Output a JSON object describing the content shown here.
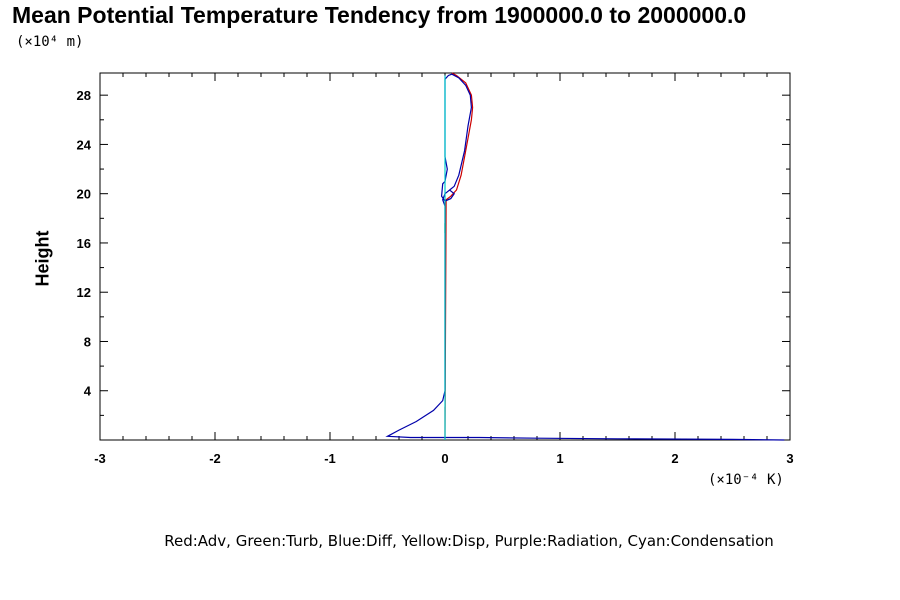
{
  "chart_data": {
    "type": "line",
    "title": "Mean Potential Temperature Tendency from 1900000.0 to 2000000.0",
    "ylabel": "Height",
    "xunits_label": "(×10⁻⁴ K)",
    "yunits_label": "(×10⁴ m)",
    "legend_text": "Red:Adv, Green:Turb, Blue:Diff, Yellow:Disp, Purple:Radiation, Cyan:Condensation",
    "xlim": [
      -3,
      3
    ],
    "ylim": [
      0,
      29.8
    ],
    "xticks": [
      -3,
      -2,
      -1,
      0,
      1,
      2,
      3
    ],
    "xtick_labels": [
      "-3",
      "-2",
      "-1",
      "0",
      "1",
      "2",
      "3"
    ],
    "yticks": [
      4,
      8,
      12,
      16,
      20,
      24,
      28
    ],
    "ytick_labels": [
      "4",
      "8",
      "12",
      "16",
      "20",
      "24",
      "28"
    ],
    "grid": false,
    "series": [
      {
        "name": "Adv",
        "color": "#cc0000",
        "points": [
          [
            0.0,
            0
          ],
          [
            0.0,
            2.6
          ],
          [
            0.0,
            2.7
          ],
          [
            0.0,
            0.3
          ],
          [
            0.01,
            19.5
          ],
          [
            0.05,
            19.8
          ],
          [
            0.1,
            20.3
          ],
          [
            0.14,
            21.5
          ],
          [
            0.17,
            23.0
          ],
          [
            0.2,
            24.5
          ],
          [
            0.23,
            26.0
          ],
          [
            0.24,
            27.0
          ],
          [
            0.23,
            28.0
          ],
          [
            0.18,
            29.0
          ],
          [
            0.1,
            29.6
          ],
          [
            0.06,
            29.8
          ]
        ]
      },
      {
        "name": "Turb",
        "color": "#00aa00",
        "points": [
          [
            0.0,
            16.8
          ],
          [
            0.0,
            17.6
          ]
        ]
      },
      {
        "name": "Diff",
        "color": "#0000aa",
        "points": [
          [
            2.95,
            0.0
          ],
          [
            2.5,
            0.05
          ],
          [
            1.5,
            0.1
          ],
          [
            0.8,
            0.15
          ],
          [
            0.3,
            0.2
          ],
          [
            0.0,
            0.2
          ],
          [
            -0.3,
            0.2
          ],
          [
            -0.5,
            0.3
          ],
          [
            -0.4,
            0.8
          ],
          [
            -0.25,
            1.5
          ],
          [
            -0.1,
            2.4
          ],
          [
            -0.02,
            3.2
          ],
          [
            0.0,
            4.0
          ],
          [
            0.0,
            12.0
          ],
          [
            0.0,
            19.0
          ],
          [
            -0.02,
            19.5
          ],
          [
            0.0,
            20.0
          ],
          [
            0.04,
            20.3
          ],
          [
            0.08,
            20.0
          ],
          [
            0.05,
            19.6
          ],
          [
            0.0,
            19.4
          ],
          [
            -0.03,
            19.8
          ],
          [
            -0.02,
            20.8
          ],
          [
            0.0,
            21.0
          ],
          [
            0.02,
            22.0
          ],
          [
            0.0,
            23.0
          ],
          [
            0.0,
            25.0
          ],
          [
            0.0,
            28.0
          ],
          [
            0.0,
            29.3
          ],
          [
            0.03,
            29.6
          ],
          [
            0.06,
            29.7
          ],
          [
            0.12,
            29.4
          ],
          [
            0.18,
            28.8
          ],
          [
            0.22,
            28.0
          ],
          [
            0.23,
            27.0
          ],
          [
            0.2,
            25.5
          ],
          [
            0.17,
            23.5
          ],
          [
            0.12,
            21.5
          ],
          [
            0.08,
            20.6
          ],
          [
            0.04,
            20.3
          ]
        ]
      },
      {
        "name": "Condensation",
        "color": "#00cccc",
        "points": [
          [
            0.0,
            0.0
          ],
          [
            0.0,
            10.0
          ],
          [
            0.0,
            19.5
          ],
          [
            0.0,
            24.0
          ],
          [
            0.0,
            29.6
          ]
        ]
      }
    ]
  }
}
